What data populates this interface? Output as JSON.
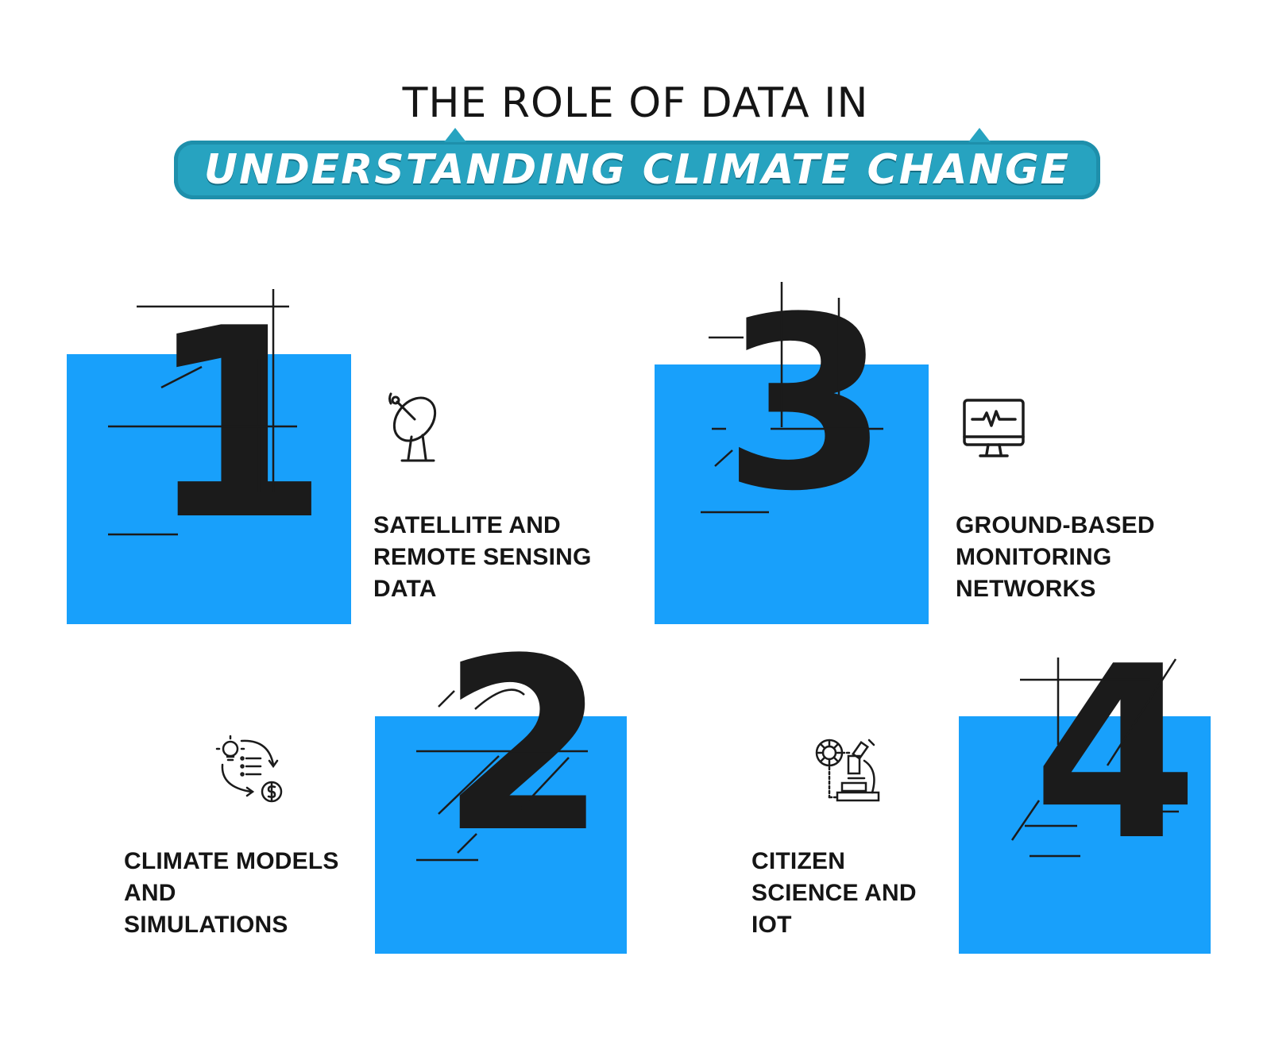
{
  "header": {
    "line1": "THE ROLE OF DATA IN",
    "line2": "UNDERSTANDING CLIMATE CHANGE"
  },
  "colors": {
    "square": "#18a0fb",
    "banner": "#27a3c0",
    "ink": "#1b1b1b"
  },
  "steps": [
    {
      "number": "1",
      "label_lines": [
        "SATELLITE AND",
        "REMOTE SENSING",
        "DATA"
      ],
      "icon": "satellite-dish-icon"
    },
    {
      "number": "2",
      "label_lines": [
        "CLIMATE MODELS",
        "AND",
        "SIMULATIONS"
      ],
      "icon": "lightbulb-cycle-dollar-icon"
    },
    {
      "number": "3",
      "label_lines": [
        "GROUND-BASED",
        "MONITORING",
        "NETWORKS"
      ],
      "icon": "monitor-heartbeat-icon"
    },
    {
      "number": "4",
      "label_lines": [
        "CITIZEN",
        "SCIENCE AND",
        "IOT"
      ],
      "icon": "microscope-virus-icon"
    }
  ]
}
